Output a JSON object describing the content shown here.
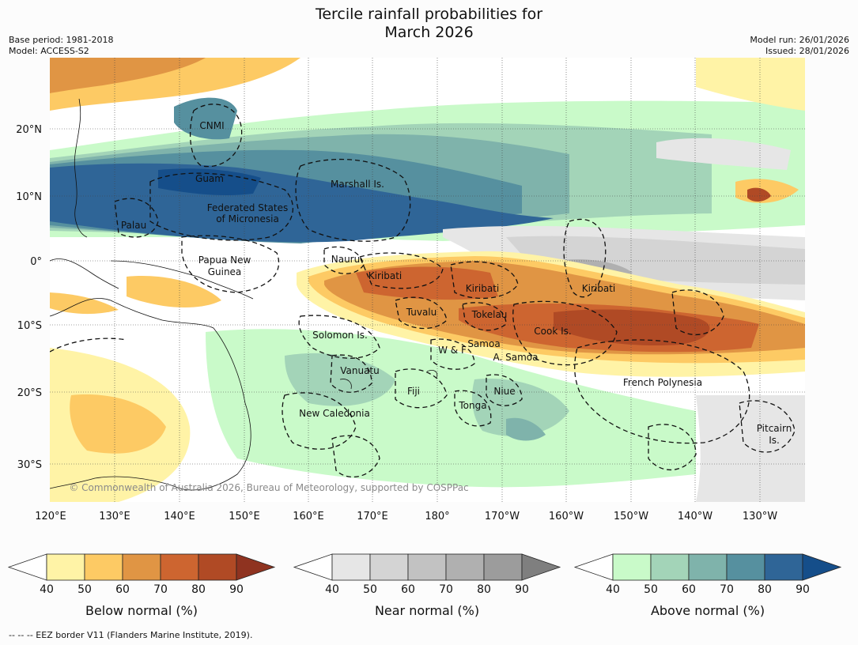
{
  "title_line1": "Tercile rainfall probabilities for",
  "title_line2": "March 2026",
  "base_period": "Base period: 1981-2018",
  "model": "Model: ACCESS-S2",
  "model_run": "Model run: 26/01/2026",
  "issued": "Issued: 28/01/2026",
  "copyright": "© Commonwealth of Australia 2026, Bureau of Meteorology, supported by COSPPac",
  "footnote": "-- -- -- EEZ border V11 (Flanders Marine Institute, 2019).",
  "lon_ticks": [
    "120°E",
    "130°E",
    "140°E",
    "150°E",
    "160°E",
    "170°E",
    "180°",
    "170°W",
    "160°W",
    "150°W",
    "140°W",
    "130°W"
  ],
  "lat_ticks": [
    "20°N",
    "10°N",
    "0°",
    "10°S",
    "20°S",
    "30°S"
  ],
  "regions": [
    {
      "name": "CNMI"
    },
    {
      "name": "Guam"
    },
    {
      "name": "Marshall Is."
    },
    {
      "name": "Federated States"
    },
    {
      "name": "of Micronesia"
    },
    {
      "name": "Palau"
    },
    {
      "name": "Papua New"
    },
    {
      "name": "Guinea"
    },
    {
      "name": "Nauru"
    },
    {
      "name": "Kiribati"
    },
    {
      "name": "Kiribati"
    },
    {
      "name": "Kiribati"
    },
    {
      "name": "Tuvalu"
    },
    {
      "name": "Tokelau"
    },
    {
      "name": "Cook Is."
    },
    {
      "name": "Solomon Is."
    },
    {
      "name": "W & F"
    },
    {
      "name": "Samoa"
    },
    {
      "name": "A. Samoa"
    },
    {
      "name": "Vanuatu"
    },
    {
      "name": "Fiji"
    },
    {
      "name": "Niue"
    },
    {
      "name": "Tonga"
    },
    {
      "name": "French Polynesia"
    },
    {
      "name": "New Caledonia"
    },
    {
      "name": "Pitcairn"
    },
    {
      "name": "Is."
    }
  ],
  "colorbars": [
    {
      "label": "Below normal (%)",
      "ticks": [
        "40",
        "50",
        "60",
        "70",
        "80",
        "90"
      ],
      "colors": [
        "#fff3a6",
        "#fdca64",
        "#e09544",
        "#cd6530",
        "#b04a25"
      ],
      "extend_color": "#8f3320"
    },
    {
      "label": "Near normal (%)",
      "ticks": [
        "40",
        "50",
        "60",
        "70",
        "80",
        "90"
      ],
      "colors": [
        "#e6e6e6",
        "#d4d4d4",
        "#c2c2c2",
        "#b0b0b0",
        "#9c9c9c"
      ],
      "extend_color": "#7f7f7f"
    },
    {
      "label": "Above normal (%)",
      "ticks": [
        "40",
        "50",
        "60",
        "70",
        "80",
        "90"
      ],
      "colors": [
        "#c9fac9",
        "#a3d4b8",
        "#7fb3ab",
        "#56909f",
        "#2f6597"
      ],
      "extend_color": "#154e8a"
    }
  ]
}
